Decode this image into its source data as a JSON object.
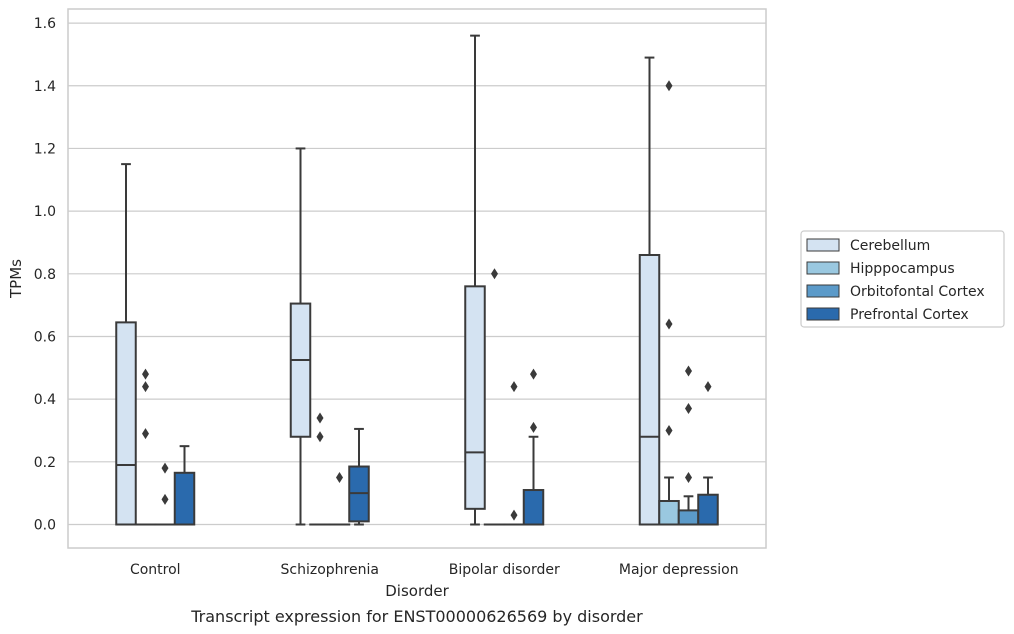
{
  "chart_data": {
    "type": "box",
    "title": "",
    "caption": "Transcript expression for ENST00000626569 by disorder",
    "xlabel": "Disorder",
    "ylabel": "TPMs",
    "ylim": [
      -0.075,
      1.645
    ],
    "yticks": [
      "0.0",
      "0.2",
      "0.4",
      "0.6",
      "0.8",
      "1.0",
      "1.2",
      "1.4",
      "1.6"
    ],
    "grid": "horizontal",
    "legend_position": "right",
    "categories": [
      "Control",
      "Schizophrenia",
      "Bipolar disorder",
      "Major depression"
    ],
    "series": [
      {
        "name": "Cerebellum",
        "color": "#d4e3f2",
        "boxes": [
          {
            "q1": 0.0,
            "median": 0.19,
            "q3": 0.645,
            "whislo": 0.0,
            "whishi": 1.15,
            "fliers": []
          },
          {
            "q1": 0.28,
            "median": 0.525,
            "q3": 0.705,
            "whislo": 0.0,
            "whishi": 1.2,
            "fliers": []
          },
          {
            "q1": 0.05,
            "median": 0.23,
            "q3": 0.76,
            "whislo": 0.0,
            "whishi": 1.56,
            "fliers": []
          },
          {
            "q1": 0.0,
            "median": 0.28,
            "q3": 0.86,
            "whislo": 0.0,
            "whishi": 1.49,
            "fliers": []
          }
        ]
      },
      {
        "name": "Hipppocampus",
        "color": "#9ac8e0",
        "boxes": [
          {
            "q1": 0.0,
            "median": 0.0,
            "q3": 0.0,
            "whislo": 0.0,
            "whishi": 0.0,
            "fliers": [
              0.48,
              0.44,
              0.29
            ]
          },
          {
            "q1": 0.0,
            "median": 0.0,
            "q3": 0.0,
            "whislo": 0.0,
            "whishi": 0.0,
            "fliers": [
              0.34,
              0.28
            ]
          },
          {
            "q1": 0.0,
            "median": 0.0,
            "q3": 0.0,
            "whislo": 0.0,
            "whishi": 0.0,
            "fliers": [
              0.8
            ]
          },
          {
            "q1": 0.0,
            "median": 0.0,
            "q3": 0.075,
            "whislo": 0.0,
            "whishi": 0.15,
            "fliers": [
              1.4,
              0.64,
              0.3
            ]
          }
        ]
      },
      {
        "name": "Orbitofontal Cortex",
        "color": "#5b9ac9",
        "boxes": [
          {
            "q1": 0.0,
            "median": 0.0,
            "q3": 0.0,
            "whislo": 0.0,
            "whishi": 0.0,
            "fliers": [
              0.18,
              0.08
            ]
          },
          {
            "q1": 0.0,
            "median": 0.0,
            "q3": 0.0,
            "whislo": 0.0,
            "whishi": 0.0,
            "fliers": [
              0.15
            ]
          },
          {
            "q1": 0.0,
            "median": 0.0,
            "q3": 0.0,
            "whislo": 0.0,
            "whishi": 0.0,
            "fliers": [
              0.44,
              0.03
            ]
          },
          {
            "q1": 0.0,
            "median": 0.0,
            "q3": 0.045,
            "whislo": 0.0,
            "whishi": 0.09,
            "fliers": [
              0.49,
              0.37,
              0.15
            ]
          }
        ]
      },
      {
        "name": "Prefrontal Cortex",
        "color": "#2a6aad",
        "boxes": [
          {
            "q1": 0.0,
            "median": 0.0,
            "q3": 0.165,
            "whislo": 0.0,
            "whishi": 0.25,
            "fliers": []
          },
          {
            "q1": 0.01,
            "median": 0.1,
            "q3": 0.185,
            "whislo": 0.0,
            "whishi": 0.305,
            "fliers": []
          },
          {
            "q1": 0.0,
            "median": 0.0,
            "q3": 0.11,
            "whislo": 0.0,
            "whishi": 0.28,
            "fliers": [
              0.48,
              0.31
            ]
          },
          {
            "q1": 0.0,
            "median": 0.0,
            "q3": 0.095,
            "whislo": 0.0,
            "whishi": 0.15,
            "fliers": [
              0.44
            ]
          }
        ]
      }
    ]
  }
}
